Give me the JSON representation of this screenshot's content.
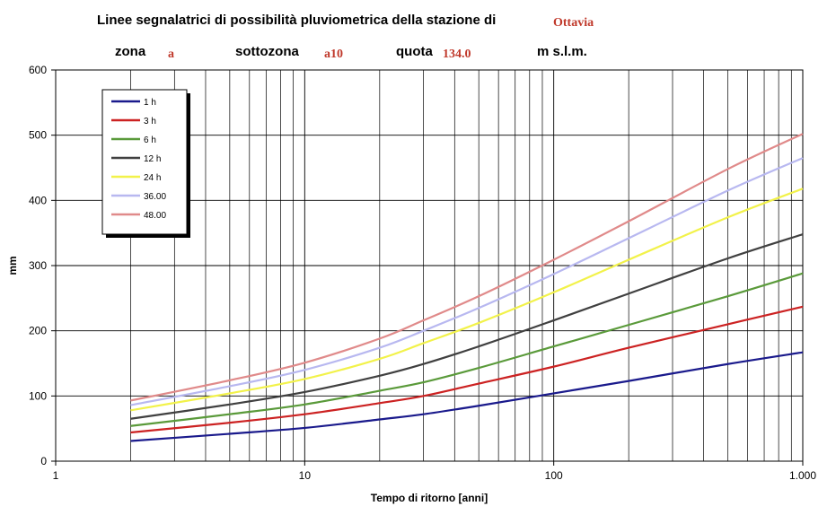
{
  "header": {
    "title": "Linee segnalatrici di possibilità pluviometrica della stazione di",
    "station": "Ottavia",
    "zona_label": "zona",
    "zona_value": "a",
    "sottozona_label": "sottozona",
    "sottozona_value": "a10",
    "quota_label": "quota",
    "quota_value": "134.0",
    "unit": "m s.l.m."
  },
  "chart_data": {
    "type": "line",
    "xlabel": "Tempo di ritorno [anni]",
    "ylabel": "mm",
    "xscale": "log",
    "xlim": [
      1,
      1000
    ],
    "ylim": [
      0,
      600
    ],
    "x_ticks": [
      1,
      10,
      100,
      1000
    ],
    "x_tick_labels": [
      "1",
      "10",
      "100",
      "1.000"
    ],
    "y_ticks": [
      0,
      100,
      200,
      300,
      400,
      500,
      600
    ],
    "y_tick_labels": [
      "0",
      "100",
      "200",
      "300",
      "400",
      "500",
      "600"
    ],
    "grid": true,
    "legend_position": "top-left",
    "x": [
      2,
      5,
      10,
      20,
      30,
      50,
      100,
      200,
      500,
      1000
    ],
    "series": [
      {
        "name": "1 h",
        "color": "#1a1a8c",
        "values": [
          31,
          42,
          51,
          64,
          72,
          85,
          104,
          123,
          149,
          167
        ]
      },
      {
        "name": "3 h",
        "color": "#cc2222",
        "values": [
          44,
          59,
          72,
          89,
          100,
          119,
          145,
          174,
          210,
          237
        ]
      },
      {
        "name": "6 h",
        "color": "#5a9a3a",
        "values": [
          54,
          72,
          87,
          108,
          121,
          143,
          176,
          209,
          253,
          288
        ]
      },
      {
        "name": "12 h",
        "color": "#404040",
        "values": [
          65,
          87,
          106,
          131,
          149,
          176,
          216,
          257,
          311,
          348
        ]
      },
      {
        "name": "24 h",
        "color": "#f2f24a",
        "values": [
          78,
          104,
          126,
          157,
          181,
          212,
          259,
          309,
          374,
          418
        ]
      },
      {
        "name": "36.00",
        "color": "#b8b8f0",
        "values": [
          86,
          115,
          140,
          174,
          200,
          235,
          287,
          342,
          415,
          465
        ]
      },
      {
        "name": "48.00",
        "color": "#e08a8a",
        "values": [
          93,
          124,
          151,
          188,
          216,
          253,
          309,
          368,
          448,
          502
        ]
      }
    ]
  }
}
